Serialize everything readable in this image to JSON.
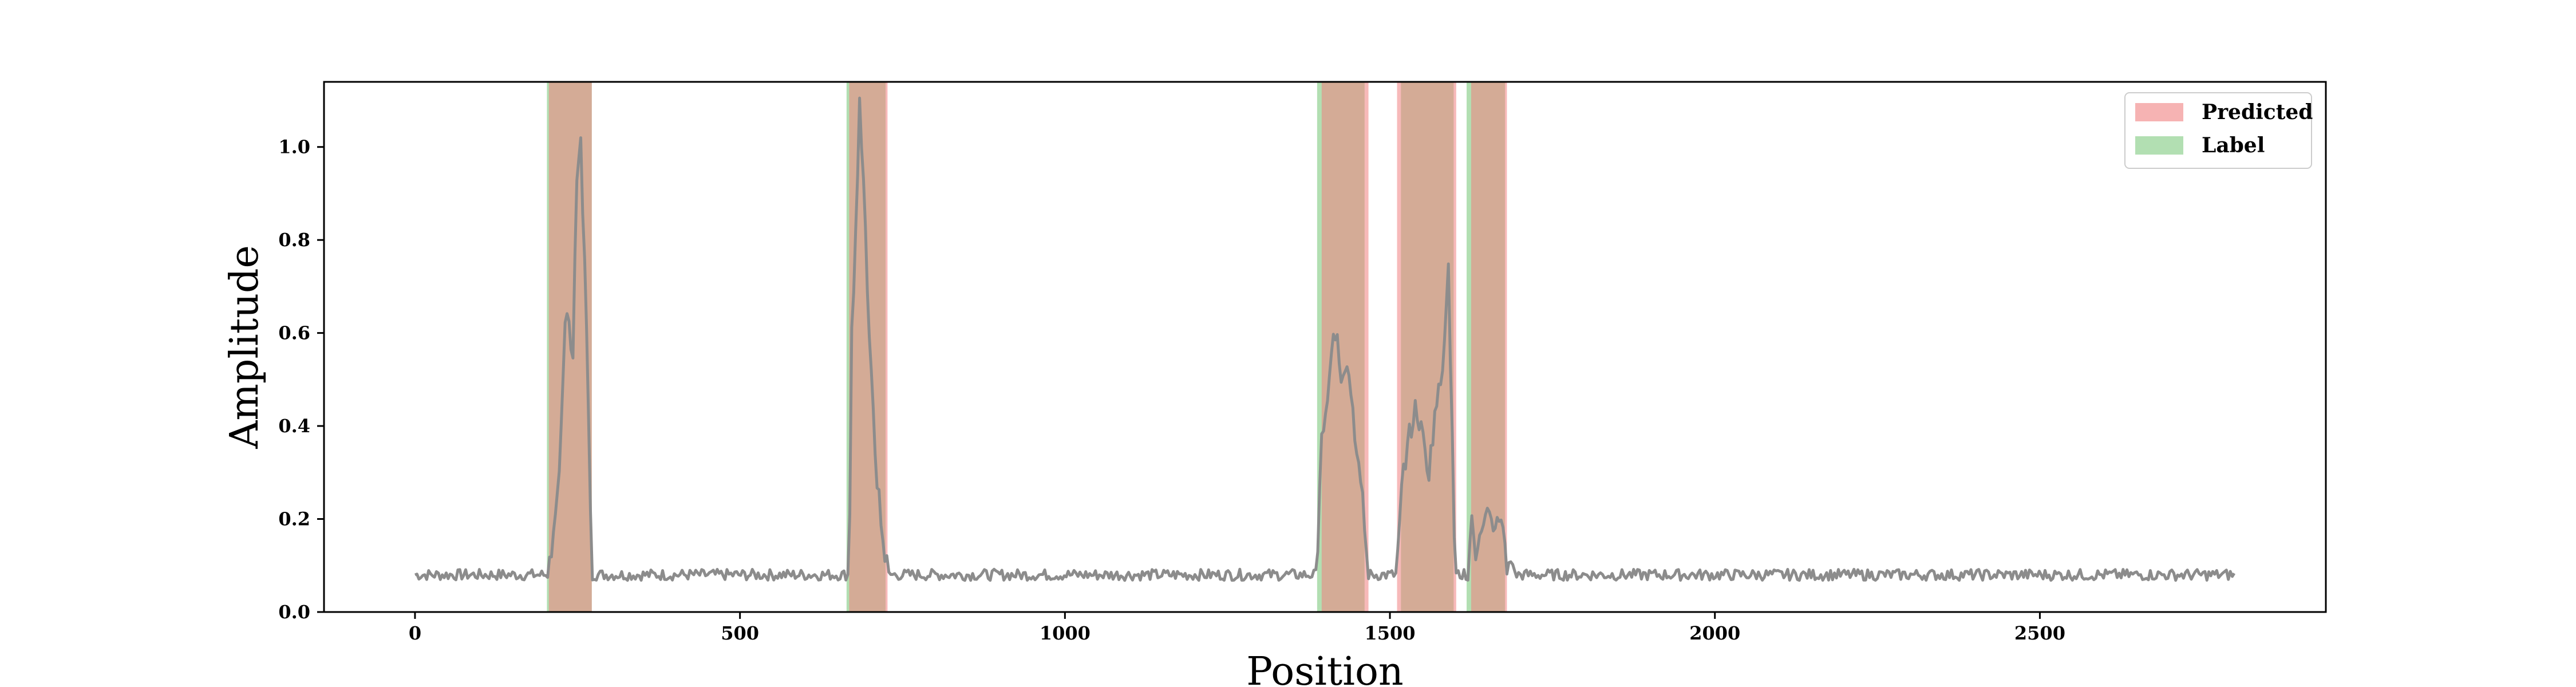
{
  "chart_data": {
    "type": "line",
    "title": "",
    "xlabel": "Position",
    "ylabel": "Amplitude",
    "xlim": [
      -140,
      2940
    ],
    "ylim": [
      0.0,
      1.14
    ],
    "xticks": [
      0,
      500,
      1000,
      1500,
      2000,
      2500
    ],
    "yticks": [
      0.0,
      0.2,
      0.4,
      0.6,
      0.8,
      1.0
    ],
    "xtick_labels": [
      "0",
      "500",
      "1000",
      "1500",
      "2000",
      "2500"
    ],
    "ytick_labels": [
      "0.0",
      "0.2",
      "0.4",
      "0.6",
      "0.8",
      "1.0"
    ],
    "grid": false,
    "legend": {
      "placement": "top-right",
      "entries": [
        {
          "label": "Predicted",
          "color": "#f08080"
        },
        {
          "label": "Label",
          "color": "#7fc97f"
        }
      ]
    },
    "colors": {
      "line": "#8c8c8c",
      "predicted": "#f08080",
      "label": "#7fc97f",
      "overlap": "#b0a079"
    },
    "predicted_regions": [
      [
        206,
        272
      ],
      [
        668,
        727
      ],
      [
        1395,
        1467
      ],
      [
        1511,
        1602
      ],
      [
        1625,
        1680
      ]
    ],
    "label_regions": [
      [
        203,
        272
      ],
      [
        664,
        724
      ],
      [
        1388,
        1461
      ],
      [
        1517,
        1598
      ],
      [
        1618,
        1677
      ]
    ],
    "series": [
      {
        "values": {
          "baseline": 0.08,
          "noise": 0.012,
          "x_range": [
            0,
            2800
          ],
          "peaks": [
            {
              "x": [
                205,
                215,
                222,
                230,
                236,
                242,
                248,
                254,
                260,
                266,
                272
              ],
              "y": [
                0.09,
                0.17,
                0.3,
                0.6,
                0.68,
                0.5,
                0.9,
                1.04,
                0.8,
                0.5,
                0.1
              ]
            },
            {
              "x": [
                668,
                672,
                678,
                684,
                690,
                696,
                702,
                710,
                720,
                728
              ],
              "y": [
                0.09,
                0.6,
                0.8,
                1.09,
                0.95,
                0.7,
                0.5,
                0.3,
                0.15,
                0.09
              ]
            },
            {
              "x": [
                1388,
                1395,
                1405,
                1415,
                1425,
                1435,
                1445,
                1455,
                1465
              ],
              "y": [
                0.1,
                0.37,
                0.46,
                0.62,
                0.5,
                0.55,
                0.4,
                0.3,
                0.1
              ]
            },
            {
              "x": [
                1511,
                1520,
                1530,
                1540,
                1550,
                1560,
                1570,
                1580,
                1590,
                1600
              ],
              "y": [
                0.1,
                0.3,
                0.38,
                0.44,
                0.38,
                0.3,
                0.44,
                0.5,
                0.76,
                0.1
              ]
            },
            {
              "x": [
                1620,
                1625,
                1630,
                1640,
                1650,
                1660,
                1670,
                1680,
                1690
              ],
              "y": [
                0.09,
                0.22,
                0.12,
                0.16,
                0.2,
                0.18,
                0.22,
                0.1,
                0.12
              ]
            }
          ]
        }
      }
    ]
  }
}
